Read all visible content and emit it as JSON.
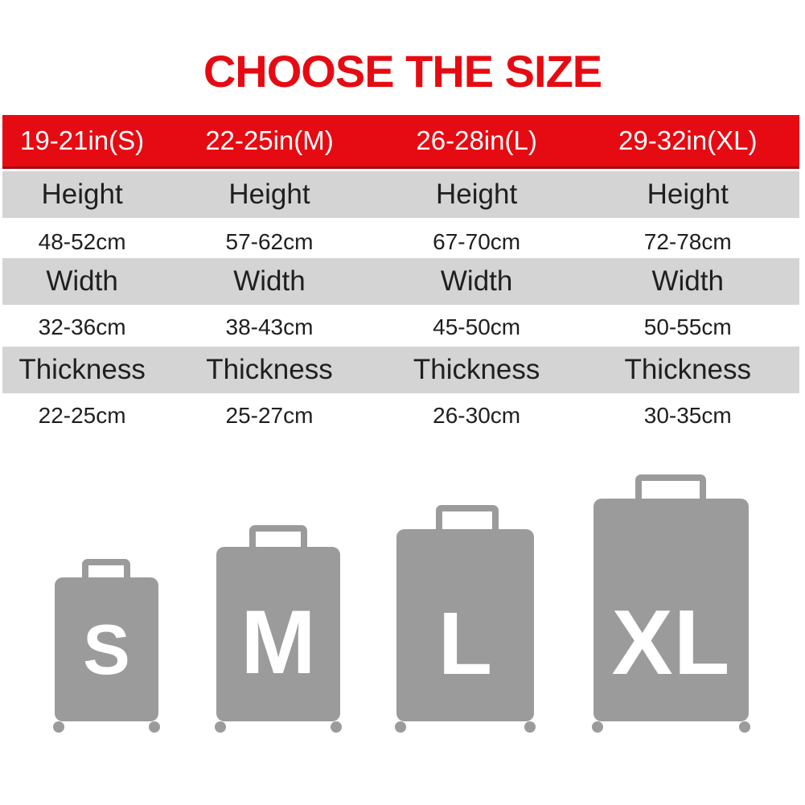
{
  "title": "CHOOSE THE SIZE",
  "colors": {
    "red": "#e60b12",
    "red_dark": "#a80a0e",
    "row_gray": "#d4d4d4",
    "suitcase_gray": "#9b9b9b",
    "text": "#1f1f1f",
    "white": "#ffffff"
  },
  "chart_data": {
    "type": "table",
    "title": "CHOOSE THE SIZE",
    "columns": [
      "19-21in(S)",
      "22-25in(M)",
      "26-28in(L)",
      "29-32in(XL)"
    ],
    "measure_rows": [
      {
        "label": "Height",
        "values": [
          "48-52cm",
          "57-62cm",
          "67-70cm",
          "72-78cm"
        ]
      },
      {
        "label": "Width",
        "values": [
          "32-36cm",
          "38-43cm",
          "45-50cm",
          "50-55cm"
        ]
      },
      {
        "label": "Thickness",
        "values": [
          "22-25cm",
          "25-27cm",
          "26-30cm",
          "30-35cm"
        ]
      }
    ],
    "layout_hints": {
      "header_background": "red",
      "label_row_background": "light-gray",
      "value_row_background": "white"
    }
  },
  "suitcases": [
    {
      "label": "S"
    },
    {
      "label": "M"
    },
    {
      "label": "L"
    },
    {
      "label": "XL"
    }
  ]
}
